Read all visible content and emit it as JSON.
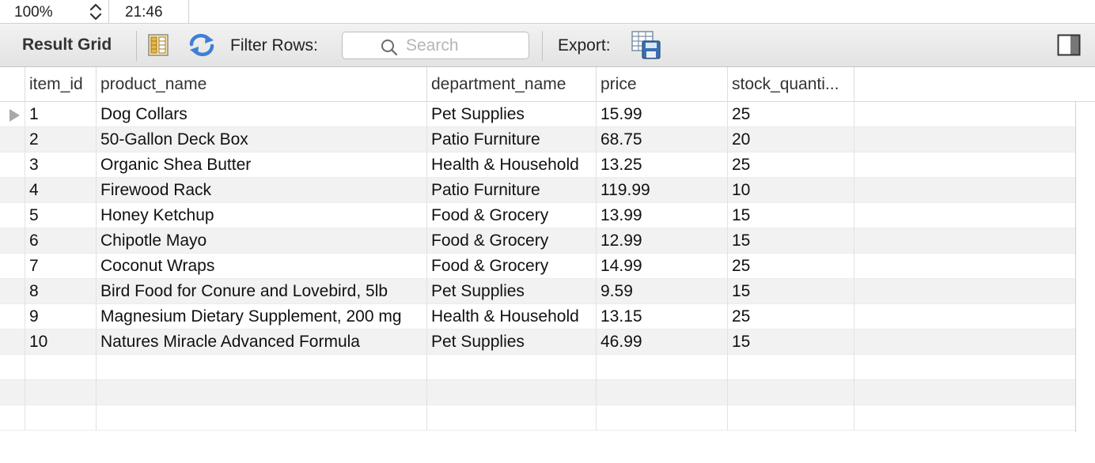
{
  "status_bar": {
    "zoom": "100%",
    "time": "21:46"
  },
  "toolbar": {
    "title": "Result Grid",
    "filter_label": "Filter Rows:",
    "search_placeholder": "Search",
    "search_value": "",
    "export_label": "Export:"
  },
  "grid": {
    "columns": [
      "item_id",
      "product_name",
      "department_name",
      "price",
      "stock_quanti..."
    ],
    "rows": [
      [
        "1",
        "Dog Collars",
        "Pet Supplies",
        "15.99",
        "25"
      ],
      [
        "2",
        "50-Gallon Deck Box",
        "Patio Furniture",
        "68.75",
        "20"
      ],
      [
        "3",
        "Organic Shea Butter",
        "Health & Household",
        "13.25",
        "25"
      ],
      [
        "4",
        "Firewood Rack",
        "Patio Furniture",
        "119.99",
        "10"
      ],
      [
        "5",
        "Honey Ketchup",
        "Food & Grocery",
        "13.99",
        "15"
      ],
      [
        "6",
        "Chipotle Mayo",
        "Food & Grocery",
        "12.99",
        "15"
      ],
      [
        "7",
        "Coconut Wraps",
        "Food & Grocery",
        "14.99",
        "25"
      ],
      [
        "8",
        "Bird Food for Conure and Lovebird, 5lb",
        "Pet Supplies",
        "9.59",
        "15"
      ],
      [
        "9",
        "Magnesium Dietary Supplement, 200 mg",
        "Health & Household",
        "13.15",
        "25"
      ],
      [
        "10",
        "Natures Miracle Advanced Formula",
        "Pet Supplies",
        "46.99",
        "15"
      ]
    ]
  },
  "icons": {
    "zoom_stepper": "chevron-up-down-icon",
    "form_editor": "form-columns-icon",
    "refresh": "refresh-arrows-icon",
    "search": "magnifier-icon",
    "export": "export-table-save-icon",
    "panel_toggle": "side-panel-toggle-icon"
  },
  "colors": {
    "refresh_icon": "#3d7fd6",
    "form_icon": "#e8b64a",
    "export_icon": "#3b6fae"
  }
}
